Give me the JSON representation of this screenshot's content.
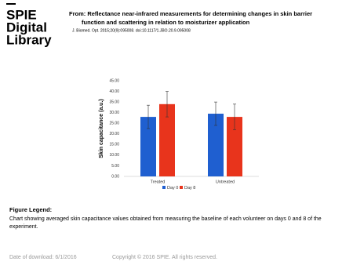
{
  "logo": {
    "lines": [
      "SPIE",
      "Digital",
      "Library"
    ]
  },
  "header": {
    "title_line1": "From: Reflectance near-infrared measurements for determining changes in skin barrier",
    "title_line2": "function and scattering in relation to moisturizer application",
    "citation": "J. Biomed. Opt. 2015;20(9):095008. doi:10.1117/1.JBO.20.9.095008"
  },
  "chart_data": {
    "type": "bar",
    "y_label": "Skin capacitance (a.u.)",
    "categories": [
      "Treated",
      "Untreated"
    ],
    "series": [
      {
        "name": "Day 0",
        "color": "#1f5fd0",
        "values": [
          28,
          29.5
        ],
        "errors": [
          5.5,
          5.5
        ]
      },
      {
        "name": "Day 8",
        "color": "#e8341c",
        "values": [
          34,
          28
        ],
        "errors": [
          6,
          6
        ]
      }
    ],
    "ylim": [
      0,
      45
    ],
    "yticks": [
      {
        "value": 0,
        "label": "0.00"
      },
      {
        "value": 5,
        "label": "5.00"
      },
      {
        "value": 10,
        "label": "10.00"
      },
      {
        "value": 15,
        "label": "15.00"
      },
      {
        "value": 20,
        "label": "20.00"
      },
      {
        "value": 25,
        "label": "25.00"
      },
      {
        "value": 30,
        "label": "30.00"
      },
      {
        "value": 35,
        "label": "35.00"
      },
      {
        "value": 40,
        "label": "40.00"
      },
      {
        "value": 45,
        "label": "45.00"
      }
    ],
    "grid": false,
    "legend": "bottom"
  },
  "figure_legend": {
    "heading": "Figure Legend:",
    "caption": "Chart showing averaged skin capacitance values obtained from measuring the baseline of each volunteer on days 0 and 8 of the experiment."
  },
  "footer": {
    "date": "Date of download:  6/1/2016",
    "copyright": "Copyright © 2016 SPIE. All rights reserved."
  }
}
